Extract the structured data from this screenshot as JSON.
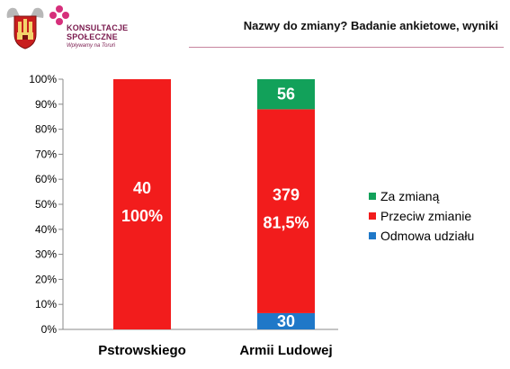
{
  "header": {
    "title": "Nazwy do zmiany? Badanie ankietowe, wyniki",
    "logo_line1": "KONSULTACJE",
    "logo_line2": "SPOŁECZNE",
    "logo_tagline": "Wpływamy na Toruń"
  },
  "colors": {
    "za": "#12a15a",
    "przeciw": "#f21c1c",
    "odmowa": "#1f78c8",
    "brand": "#7a1a4e"
  },
  "chart_data": {
    "type": "bar",
    "stacked": "percent",
    "categories": [
      "Pstrowskiego",
      "Armii Ludowej"
    ],
    "series": [
      {
        "name": "Odmowa udziału",
        "values": [
          0,
          30
        ],
        "percent": [
          0,
          6.5
        ]
      },
      {
        "name": "Przeciw zmianie",
        "values": [
          40,
          379
        ],
        "percent": [
          100,
          81.5
        ]
      },
      {
        "name": "Za zmianą",
        "values": [
          0,
          56
        ],
        "percent": [
          0,
          12.0
        ]
      }
    ],
    "percent_labels": [
      "100%",
      "81,5%"
    ],
    "yticks": [
      "0%",
      "10%",
      "20%",
      "30%",
      "40%",
      "50%",
      "60%",
      "70%",
      "80%",
      "90%",
      "100%"
    ],
    "ylim": [
      0,
      100
    ],
    "legend_position": "right",
    "grid": false
  }
}
